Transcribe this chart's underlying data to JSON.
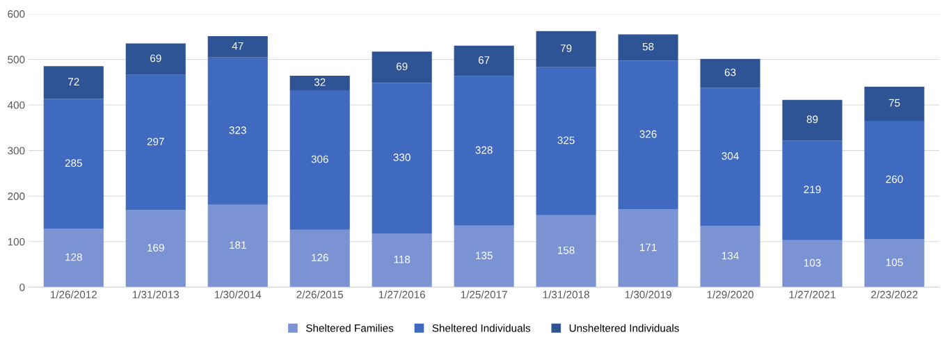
{
  "chart_data": {
    "type": "bar",
    "stacked": true,
    "categories": [
      "1/26/2012",
      "1/31/2013",
      "1/30/2014",
      "2/26/2015",
      "1/27/2016",
      "1/25/2017",
      "1/31/2018",
      "1/30/2019",
      "1/29/2020",
      "1/27/2021",
      "2/23/2022"
    ],
    "series": [
      {
        "name": "Sheltered Families",
        "color": "#7b93d3",
        "values": [
          128,
          169,
          181,
          126,
          118,
          135,
          158,
          171,
          134,
          103,
          105
        ]
      },
      {
        "name": "Sheltered Individuals",
        "color": "#3f6abf",
        "values": [
          285,
          297,
          323,
          306,
          330,
          328,
          325,
          326,
          304,
          219,
          260
        ]
      },
      {
        "name": "Unsheltered Individuals",
        "color": "#2f5496",
        "values": [
          72,
          69,
          47,
          32,
          69,
          67,
          79,
          58,
          63,
          89,
          75
        ]
      }
    ],
    "ylim": [
      0,
      600
    ],
    "yticks": [
      0,
      100,
      200,
      300,
      400,
      500,
      600
    ],
    "grid": "y",
    "legend": "bottom",
    "data_labels": true
  }
}
